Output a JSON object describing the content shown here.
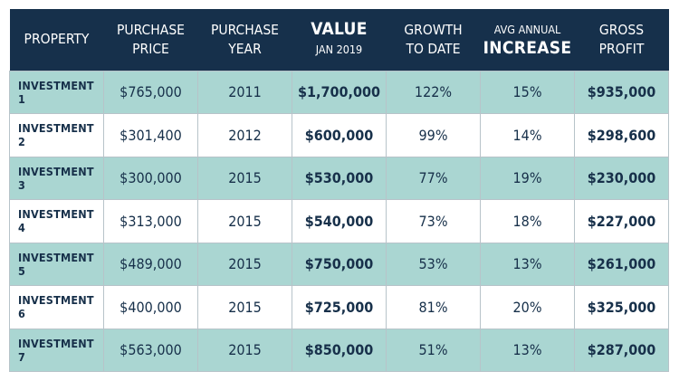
{
  "chart_data": {
    "type": "table",
    "columns": [
      {
        "line1": "PROPERTY",
        "line2": ""
      },
      {
        "line1": "PURCHASE",
        "line2": "PRICE"
      },
      {
        "line1": "PURCHASE",
        "line2": "YEAR"
      },
      {
        "line1": "VALUE",
        "line2": "JAN 2019"
      },
      {
        "line1": "GROWTH",
        "line2": "TO DATE"
      },
      {
        "line1": "AVG ANNUAL",
        "line2": "INCREASE"
      },
      {
        "line1": "GROSS",
        "line2": "PROFIT"
      }
    ],
    "rows": [
      [
        "INVESTMENT 1",
        "$765,000",
        "2011",
        "$1,700,000",
        "122%",
        "15%",
        "$935,000"
      ],
      [
        "INVESTMENT 2",
        "$301,400",
        "2012",
        "$600,000",
        "99%",
        "14%",
        "$298,600"
      ],
      [
        "INVESTMENT 3",
        "$300,000",
        "2015",
        "$530,000",
        "77%",
        "19%",
        "$230,000"
      ],
      [
        "INVESTMENT 4",
        "$313,000",
        "2015",
        "$540,000",
        "73%",
        "18%",
        "$227,000"
      ],
      [
        "INVESTMENT 5",
        "$489,000",
        "2015",
        "$750,000",
        "53%",
        "13%",
        "$261,000"
      ],
      [
        "INVESTMENT 6",
        "$400,000",
        "2015",
        "$725,000",
        "81%",
        "20%",
        "$325,000"
      ],
      [
        "INVESTMENT 7",
        "$563,000",
        "2015",
        "$850,000",
        "51%",
        "13%",
        "$287,000"
      ]
    ]
  },
  "colors": {
    "header_bg": "#16304b",
    "header_text": "#ffffff",
    "row_shaded": "#aad6d2",
    "row_plain": "#ffffff",
    "body_text": "#17304a",
    "grid_line": "#b7c3c9"
  }
}
